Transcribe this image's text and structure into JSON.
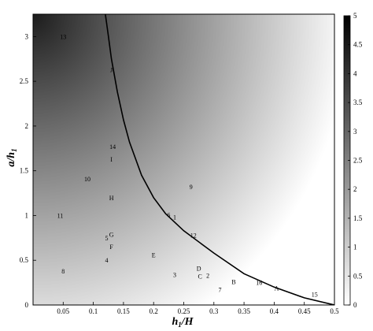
{
  "chart_data": {
    "type": "heatmap",
    "title": "",
    "xlabel": {
      "base": "h",
      "sub": "1",
      "tail": "/H"
    },
    "ylabel": {
      "base": "a/h",
      "sub": "1"
    },
    "xlim": [
      0,
      0.5
    ],
    "ylim": [
      0,
      3.25
    ],
    "x_ticks": [
      {
        "v": 0.05,
        "label": "0.05"
      },
      {
        "v": 0.1,
        "label": "0.1"
      },
      {
        "v": 0.15,
        "label": "0.15"
      },
      {
        "v": 0.2,
        "label": "0.2"
      },
      {
        "v": 0.25,
        "label": "0.25"
      },
      {
        "v": 0.3,
        "label": "0.3"
      },
      {
        "v": 0.35,
        "label": "0.35"
      },
      {
        "v": 0.4,
        "label": "0.4"
      },
      {
        "v": 0.45,
        "label": "0.45"
      },
      {
        "v": 0.5,
        "label": "0.5"
      }
    ],
    "y_ticks": [
      {
        "v": 0,
        "label": "0"
      },
      {
        "v": 0.5,
        "label": "0.5"
      },
      {
        "v": 1,
        "label": "1"
      },
      {
        "v": 1.5,
        "label": "1.5"
      },
      {
        "v": 2,
        "label": "2"
      },
      {
        "v": 2.5,
        "label": "2.5"
      },
      {
        "v": 3,
        "label": "3"
      }
    ],
    "colorbar": {
      "range": [
        0,
        5
      ],
      "ticks": [
        {
          "v": 0,
          "label": "0"
        },
        {
          "v": 0.5,
          "label": "0.5"
        },
        {
          "v": 1,
          "label": "1"
        },
        {
          "v": 1.5,
          "label": "1.5"
        },
        {
          "v": 2,
          "label": "2"
        },
        {
          "v": 2.5,
          "label": "2.5"
        },
        {
          "v": 3,
          "label": "3"
        },
        {
          "v": 3.5,
          "label": "3.5"
        },
        {
          "v": 4,
          "label": "4"
        },
        {
          "v": 4.5,
          "label": "4.5"
        },
        {
          "v": 5,
          "label": "5"
        }
      ],
      "colormap": "white-to-black"
    },
    "curve": [
      [
        0.12,
        3.25
      ],
      [
        0.125,
        3.0
      ],
      [
        0.13,
        2.75
      ],
      [
        0.14,
        2.38
      ],
      [
        0.15,
        2.07
      ],
      [
        0.16,
        1.82
      ],
      [
        0.18,
        1.45
      ],
      [
        0.2,
        1.2
      ],
      [
        0.22,
        1.02
      ],
      [
        0.25,
        0.83
      ],
      [
        0.3,
        0.58
      ],
      [
        0.35,
        0.35
      ],
      [
        0.4,
        0.2
      ],
      [
        0.45,
        0.08
      ],
      [
        0.5,
        0.0
      ]
    ],
    "points": [
      {
        "label": "13",
        "x": 0.05,
        "y": 3.0
      },
      {
        "label": "J",
        "x": 0.13,
        "y": 2.63
      },
      {
        "label": "14",
        "x": 0.132,
        "y": 1.77
      },
      {
        "label": "I",
        "x": 0.13,
        "y": 1.63
      },
      {
        "label": "10",
        "x": 0.09,
        "y": 1.41
      },
      {
        "label": "9",
        "x": 0.262,
        "y": 1.32
      },
      {
        "label": "H",
        "x": 0.13,
        "y": 1.2
      },
      {
        "label": "11",
        "x": 0.045,
        "y": 1.0
      },
      {
        "label": "6",
        "x": 0.225,
        "y": 1.01
      },
      {
        "label": "1",
        "x": 0.235,
        "y": 0.98
      },
      {
        "label": "12",
        "x": 0.266,
        "y": 0.78
      },
      {
        "label": "G",
        "x": 0.13,
        "y": 0.79
      },
      {
        "label": "5",
        "x": 0.122,
        "y": 0.75
      },
      {
        "label": "F",
        "x": 0.13,
        "y": 0.65
      },
      {
        "label": "E",
        "x": 0.2,
        "y": 0.56
      },
      {
        "label": "4",
        "x": 0.122,
        "y": 0.5
      },
      {
        "label": "D",
        "x": 0.275,
        "y": 0.41
      },
      {
        "label": "8",
        "x": 0.05,
        "y": 0.38
      },
      {
        "label": "3",
        "x": 0.235,
        "y": 0.34
      },
      {
        "label": "C",
        "x": 0.277,
        "y": 0.32
      },
      {
        "label": "2",
        "x": 0.29,
        "y": 0.33
      },
      {
        "label": "B",
        "x": 0.333,
        "y": 0.26
      },
      {
        "label": "16",
        "x": 0.375,
        "y": 0.25
      },
      {
        "label": "A",
        "x": 0.404,
        "y": 0.19
      },
      {
        "label": "7",
        "x": 0.31,
        "y": 0.17
      },
      {
        "label": "15",
        "x": 0.467,
        "y": 0.12
      }
    ]
  }
}
